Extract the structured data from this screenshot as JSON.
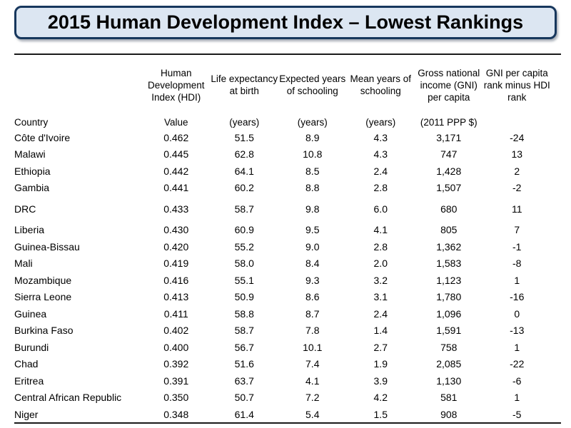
{
  "title": "2015 Human Development Index – Lowest Rankings",
  "colors": {
    "title_bg": "#dce6f2",
    "title_border": "#17375d",
    "rule": "#1a1a1a",
    "text": "#000000",
    "background": "#ffffff"
  },
  "table": {
    "columns": [
      {
        "id": "country",
        "header_lines": [],
        "subheader": "Country",
        "align": "left"
      },
      {
        "id": "hdi-value",
        "header_lines": [
          "Human",
          "Development",
          "Index (HDI)"
        ],
        "subheader": "Value",
        "align": "center"
      },
      {
        "id": "life-expectancy",
        "header_lines": [
          "Life expectancy",
          "at birth"
        ],
        "subheader": "(years)",
        "align": "center"
      },
      {
        "id": "expected-years-schooling",
        "header_lines": [
          "Expected years",
          "of schooling"
        ],
        "subheader": "(years)",
        "align": "center"
      },
      {
        "id": "mean-years-schooling",
        "header_lines": [
          "Mean years of",
          "schooling"
        ],
        "subheader": "(years)",
        "align": "center"
      },
      {
        "id": "gni-per-capita",
        "header_lines": [
          "Gross national",
          "income (GNI)",
          "per capita"
        ],
        "subheader": "(2011 PPP $)",
        "align": "center"
      },
      {
        "id": "gni-rank-minus-hdi-rank",
        "header_lines": [
          "GNI per capita",
          "rank minus HDI",
          "rank"
        ],
        "subheader": "",
        "align": "center"
      }
    ],
    "rows": [
      {
        "country": "Côte d'Ivoire",
        "values": [
          "0.462",
          "51.5",
          "8.9",
          "4.3",
          "3,171",
          "-24"
        ],
        "gap_before": false
      },
      {
        "country": "Malawi",
        "values": [
          "0.445",
          "62.8",
          "10.8",
          "4.3",
          "747",
          "13"
        ],
        "gap_before": false
      },
      {
        "country": "Ethiopia",
        "values": [
          "0.442",
          "64.1",
          "8.5",
          "2.4",
          "1,428",
          "2"
        ],
        "gap_before": false
      },
      {
        "country": "Gambia",
        "values": [
          "0.441",
          "60.2",
          "8.8",
          "2.8",
          "1,507",
          "-2"
        ],
        "gap_before": false
      },
      {
        "country": "DRC",
        "values": [
          "0.433",
          "58.7",
          "9.8",
          "6.0",
          "680",
          "11"
        ],
        "gap_before": true
      },
      {
        "country": "Liberia",
        "values": [
          "0.430",
          "60.9",
          "9.5",
          "4.1",
          "805",
          "7"
        ],
        "gap_before": true
      },
      {
        "country": "Guinea-Bissau",
        "values": [
          "0.420",
          "55.2",
          "9.0",
          "2.8",
          "1,362",
          "-1"
        ],
        "gap_before": false
      },
      {
        "country": "Mali",
        "values": [
          "0.419",
          "58.0",
          "8.4",
          "2.0",
          "1,583",
          "-8"
        ],
        "gap_before": false
      },
      {
        "country": "Mozambique",
        "values": [
          "0.416",
          "55.1",
          "9.3",
          "3.2",
          "1,123",
          "1"
        ],
        "gap_before": false
      },
      {
        "country": "Sierra Leone",
        "values": [
          "0.413",
          "50.9",
          "8.6",
          "3.1",
          "1,780",
          "-16"
        ],
        "gap_before": false
      },
      {
        "country": "Guinea",
        "values": [
          "0.411",
          "58.8",
          "8.7",
          "2.4",
          "1,096",
          "0"
        ],
        "gap_before": false
      },
      {
        "country": "Burkina Faso",
        "values": [
          "0.402",
          "58.7",
          "7.8",
          "1.4",
          "1,591",
          "-13"
        ],
        "gap_before": false
      },
      {
        "country": "Burundi",
        "values": [
          "0.400",
          "56.7",
          "10.1",
          "2.7",
          "758",
          "1"
        ],
        "gap_before": false
      },
      {
        "country": "Chad",
        "values": [
          "0.392",
          "51.6",
          "7.4",
          "1.9",
          "2,085",
          "-22"
        ],
        "gap_before": false
      },
      {
        "country": "Eritrea",
        "values": [
          "0.391",
          "63.7",
          "4.1",
          "3.9",
          "1,130",
          "-6"
        ],
        "gap_before": false
      },
      {
        "country": "Central African Republic",
        "values": [
          "0.350",
          "50.7",
          "7.2",
          "4.2",
          "581",
          "1"
        ],
        "gap_before": false
      },
      {
        "country": "Niger",
        "values": [
          "0.348",
          "61.4",
          "5.4",
          "1.5",
          "908",
          "-5"
        ],
        "gap_before": false
      }
    ]
  },
  "chart_data": {
    "type": "table",
    "title": "2015 Human Development Index – Lowest Rankings",
    "columns": [
      "Country",
      "Human Development Index (HDI) Value",
      "Life expectancy at birth (years)",
      "Expected years of schooling (years)",
      "Mean years of schooling (years)",
      "Gross national income (GNI) per capita (2011 PPP $)",
      "GNI per capita rank minus HDI rank"
    ],
    "rows": [
      [
        "Côte d'Ivoire",
        0.462,
        51.5,
        8.9,
        4.3,
        3171,
        -24
      ],
      [
        "Malawi",
        0.445,
        62.8,
        10.8,
        4.3,
        747,
        13
      ],
      [
        "Ethiopia",
        0.442,
        64.1,
        8.5,
        2.4,
        1428,
        2
      ],
      [
        "Gambia",
        0.441,
        60.2,
        8.8,
        2.8,
        1507,
        -2
      ],
      [
        "DRC",
        0.433,
        58.7,
        9.8,
        6.0,
        680,
        11
      ],
      [
        "Liberia",
        0.43,
        60.9,
        9.5,
        4.1,
        805,
        7
      ],
      [
        "Guinea-Bissau",
        0.42,
        55.2,
        9.0,
        2.8,
        1362,
        -1
      ],
      [
        "Mali",
        0.419,
        58.0,
        8.4,
        2.0,
        1583,
        -8
      ],
      [
        "Mozambique",
        0.416,
        55.1,
        9.3,
        3.2,
        1123,
        1
      ],
      [
        "Sierra Leone",
        0.413,
        50.9,
        8.6,
        3.1,
        1780,
        -16
      ],
      [
        "Guinea",
        0.411,
        58.8,
        8.7,
        2.4,
        1096,
        0
      ],
      [
        "Burkina Faso",
        0.402,
        58.7,
        7.8,
        1.4,
        1591,
        -13
      ],
      [
        "Burundi",
        0.4,
        56.7,
        10.1,
        2.7,
        758,
        1
      ],
      [
        "Chad",
        0.392,
        51.6,
        7.4,
        1.9,
        2085,
        -22
      ],
      [
        "Eritrea",
        0.391,
        63.7,
        4.1,
        3.9,
        1130,
        -6
      ],
      [
        "Central African Republic",
        0.35,
        50.7,
        7.2,
        4.2,
        581,
        1
      ],
      [
        "Niger",
        0.348,
        61.4,
        5.4,
        1.5,
        908,
        -5
      ]
    ]
  }
}
